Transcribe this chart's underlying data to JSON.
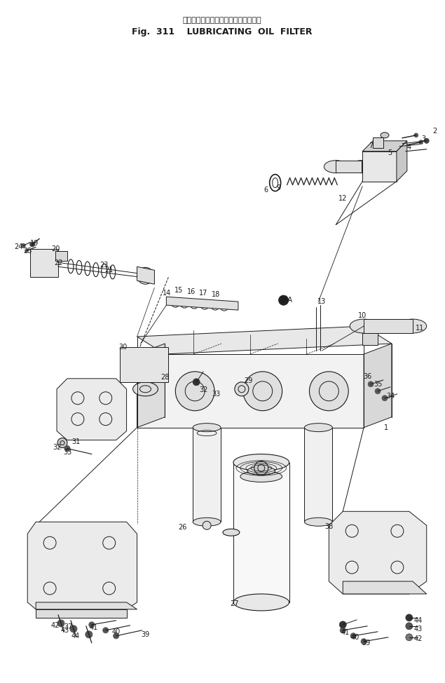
{
  "title_japanese": "ルーブリケーティングオイルフィルタ",
  "title_line2": "Fig.  311    LUBRICATING  OIL  FILTER",
  "bg_color": "#ffffff",
  "lc": "#1a1a1a",
  "fig_width": 6.35,
  "fig_height": 9.74
}
